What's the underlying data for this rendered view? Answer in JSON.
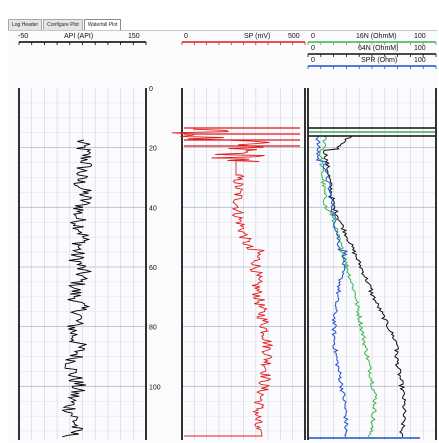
{
  "tabs": [
    {
      "label": "Log Header",
      "active": false
    },
    {
      "label": "Configure Plot",
      "active": false
    },
    {
      "label": "Waterfall Plot",
      "active": true
    }
  ],
  "track1": {
    "curve": {
      "min": "-50",
      "name": "API (API)",
      "max": "150",
      "color": "#000000"
    }
  },
  "track2": {
    "curve": {
      "min": "0",
      "name": "SP (mV)",
      "max": "500",
      "color": "#e01b1b"
    }
  },
  "track3": {
    "curves": [
      {
        "min": "0",
        "name": "16N (OhmM)",
        "max": "100",
        "color": "#3ab54a"
      },
      {
        "min": "0",
        "name": "64N (OhmM)",
        "max": "100",
        "color": "#111111"
      },
      {
        "min": "0",
        "name": "SPR (Ohm)",
        "max": "100",
        "color": "#1f4fd1"
      }
    ]
  },
  "depth": {
    "labels": [
      "0",
      "20",
      "40",
      "60",
      "80",
      "100"
    ],
    "values": [
      0,
      20,
      40,
      60,
      80,
      100
    ],
    "range": [
      0,
      118
    ]
  }
}
